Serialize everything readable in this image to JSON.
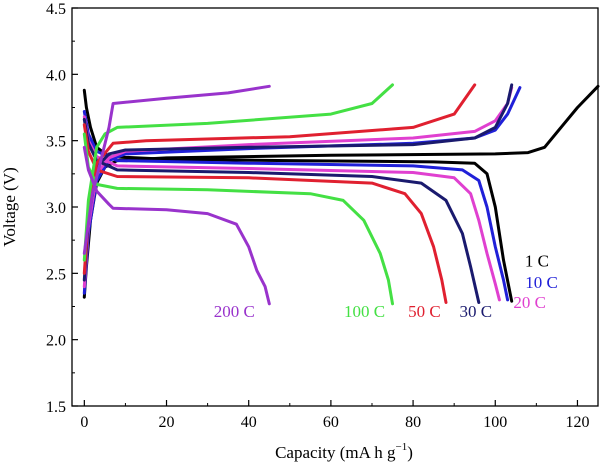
{
  "chart_data": {
    "type": "line",
    "title": "",
    "xlabel": "Capacity (mA h g",
    "xlabel_sup": "−1",
    "xlabel_close": ")",
    "ylabel": "Voltage (V)",
    "xlim": [
      -3,
      125
    ],
    "ylim": [
      1.5,
      4.5
    ],
    "xticks": [
      0,
      20,
      40,
      60,
      80,
      100,
      120
    ],
    "yticks": [
      1.5,
      2.0,
      2.5,
      3.0,
      3.5,
      4.0,
      4.5
    ],
    "xtick_labels": [
      "0",
      "20",
      "40",
      "60",
      "80",
      "100",
      "120"
    ],
    "ytick_labels": [
      "1.5",
      "2.0",
      "2.5",
      "3.0",
      "3.5",
      "4.0",
      "4.5"
    ],
    "grid": false,
    "series": [
      {
        "name": "1 C",
        "color": "#000000",
        "charge": [
          [
            0,
            2.32
          ],
          [
            0.5,
            2.55
          ],
          [
            1.5,
            2.9
          ],
          [
            3,
            3.18
          ],
          [
            5,
            3.3
          ],
          [
            8,
            3.35
          ],
          [
            20,
            3.37
          ],
          [
            60,
            3.39
          ],
          [
            100,
            3.4
          ],
          [
            108,
            3.41
          ],
          [
            112,
            3.45
          ],
          [
            116,
            3.6
          ],
          [
            120,
            3.75
          ],
          [
            125,
            3.91
          ]
        ],
        "discharge": [
          [
            0,
            3.88
          ],
          [
            0.5,
            3.75
          ],
          [
            1.5,
            3.6
          ],
          [
            3,
            3.45
          ],
          [
            6,
            3.38
          ],
          [
            20,
            3.36
          ],
          [
            50,
            3.35
          ],
          [
            85,
            3.34
          ],
          [
            95,
            3.33
          ],
          [
            98,
            3.25
          ],
          [
            100,
            3.0
          ],
          [
            102,
            2.6
          ],
          [
            104,
            2.29
          ]
        ]
      },
      {
        "name": "10 C",
        "color": "#2020d8",
        "charge": [
          [
            0,
            2.35
          ],
          [
            1,
            2.8
          ],
          [
            3,
            3.2
          ],
          [
            6,
            3.35
          ],
          [
            10,
            3.4
          ],
          [
            40,
            3.44
          ],
          [
            80,
            3.48
          ],
          [
            95,
            3.52
          ],
          [
            100,
            3.58
          ],
          [
            103,
            3.7
          ],
          [
            106,
            3.9
          ]
        ],
        "discharge": [
          [
            0,
            3.72
          ],
          [
            1,
            3.55
          ],
          [
            3,
            3.42
          ],
          [
            8,
            3.35
          ],
          [
            40,
            3.33
          ],
          [
            80,
            3.31
          ],
          [
            92,
            3.28
          ],
          [
            96,
            3.2
          ],
          [
            98,
            3.0
          ],
          [
            100,
            2.7
          ],
          [
            102,
            2.45
          ],
          [
            103,
            2.3
          ]
        ]
      },
      {
        "name": "20 C",
        "color": "#e040d0",
        "charge": [
          [
            0,
            2.4
          ],
          [
            1,
            2.85
          ],
          [
            3,
            3.25
          ],
          [
            6,
            3.37
          ],
          [
            10,
            3.42
          ],
          [
            40,
            3.47
          ],
          [
            80,
            3.52
          ],
          [
            95,
            3.57
          ],
          [
            100,
            3.65
          ],
          [
            103,
            3.78
          ],
          [
            104,
            3.9
          ]
        ],
        "discharge": [
          [
            0,
            3.68
          ],
          [
            1,
            3.5
          ],
          [
            3,
            3.38
          ],
          [
            8,
            3.31
          ],
          [
            40,
            3.29
          ],
          [
            80,
            3.26
          ],
          [
            90,
            3.22
          ],
          [
            94,
            3.1
          ],
          [
            96,
            2.9
          ],
          [
            98,
            2.65
          ],
          [
            100,
            2.42
          ],
          [
            101,
            2.3
          ]
        ]
      },
      {
        "name": "30 C",
        "color": "#1a1a6e",
        "charge": [
          [
            0,
            2.45
          ],
          [
            1,
            2.9
          ],
          [
            3,
            3.3
          ],
          [
            6,
            3.4
          ],
          [
            10,
            3.43
          ],
          [
            40,
            3.45
          ],
          [
            80,
            3.47
          ],
          [
            95,
            3.52
          ],
          [
            100,
            3.6
          ],
          [
            103,
            3.78
          ],
          [
            104,
            3.92
          ]
        ],
        "discharge": [
          [
            0,
            3.66
          ],
          [
            1,
            3.48
          ],
          [
            3,
            3.35
          ],
          [
            8,
            3.28
          ],
          [
            40,
            3.26
          ],
          [
            70,
            3.23
          ],
          [
            82,
            3.18
          ],
          [
            88,
            3.05
          ],
          [
            92,
            2.8
          ],
          [
            94,
            2.55
          ],
          [
            96,
            2.28
          ]
        ]
      },
      {
        "name": "50 C",
        "color": "#e02030",
        "charge": [
          [
            0,
            2.5
          ],
          [
            1,
            2.95
          ],
          [
            3,
            3.33
          ],
          [
            7,
            3.48
          ],
          [
            15,
            3.5
          ],
          [
            50,
            3.53
          ],
          [
            80,
            3.6
          ],
          [
            90,
            3.7
          ],
          [
            95,
            3.92
          ]
        ],
        "discharge": [
          [
            0,
            3.62
          ],
          [
            1,
            3.42
          ],
          [
            3,
            3.28
          ],
          [
            8,
            3.23
          ],
          [
            40,
            3.22
          ],
          [
            70,
            3.18
          ],
          [
            78,
            3.1
          ],
          [
            82,
            2.95
          ],
          [
            85,
            2.7
          ],
          [
            87,
            2.45
          ],
          [
            88,
            2.28
          ]
        ]
      },
      {
        "name": "100 C",
        "color": "#44e044",
        "charge": [
          [
            0,
            2.6
          ],
          [
            1,
            3.05
          ],
          [
            3,
            3.45
          ],
          [
            5,
            3.55
          ],
          [
            8,
            3.6
          ],
          [
            30,
            3.63
          ],
          [
            60,
            3.7
          ],
          [
            70,
            3.78
          ],
          [
            75,
            3.92
          ]
        ],
        "discharge": [
          [
            0,
            3.55
          ],
          [
            1,
            3.3
          ],
          [
            3,
            3.17
          ],
          [
            8,
            3.14
          ],
          [
            30,
            3.13
          ],
          [
            55,
            3.1
          ],
          [
            63,
            3.05
          ],
          [
            68,
            2.9
          ],
          [
            72,
            2.65
          ],
          [
            74,
            2.45
          ],
          [
            75,
            2.27
          ]
        ]
      },
      {
        "name": "200 C",
        "color": "#9933cc",
        "charge": [
          [
            0,
            2.65
          ],
          [
            2,
            3.1
          ],
          [
            4,
            3.35
          ],
          [
            6,
            3.6
          ],
          [
            7,
            3.78
          ],
          [
            20,
            3.82
          ],
          [
            35,
            3.86
          ],
          [
            45,
            3.91
          ]
        ],
        "discharge": [
          [
            0,
            3.45
          ],
          [
            1,
            3.28
          ],
          [
            3,
            3.12
          ],
          [
            6,
            3.02
          ],
          [
            7,
            2.99
          ],
          [
            20,
            2.98
          ],
          [
            30,
            2.95
          ],
          [
            37,
            2.87
          ],
          [
            40,
            2.7
          ],
          [
            42,
            2.52
          ],
          [
            44,
            2.4
          ],
          [
            45,
            2.27
          ]
        ]
      }
    ],
    "annotations": [
      {
        "text": "1 C",
        "x": 107.2,
        "y": 2.55,
        "color": "#000000"
      },
      {
        "text": "10 C",
        "x": 107.3,
        "y": 2.39,
        "color": "#2020d8"
      },
      {
        "text": "20 C",
        "x": 104.4,
        "y": 2.24,
        "color": "#e040d0"
      },
      {
        "text": "30 C",
        "x": 91.3,
        "y": 2.17,
        "color": "#1a1a6e"
      },
      {
        "text": "50 C",
        "x": 78.8,
        "y": 2.17,
        "color": "#e02030"
      },
      {
        "text": "100 C",
        "x": 63.2,
        "y": 2.17,
        "color": "#44e044"
      },
      {
        "text": "200 C",
        "x": 31.5,
        "y": 2.17,
        "color": "#9933cc"
      }
    ]
  }
}
